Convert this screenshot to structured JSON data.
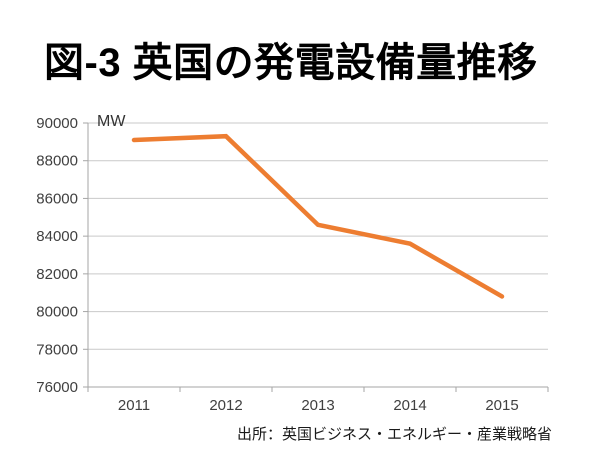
{
  "header": {
    "title": "図-3 英国の発電設備量推移"
  },
  "footer": {
    "source_label": "出所：英国ビジネス・エネルギー・産業戦略省"
  },
  "chart_data": {
    "type": "line",
    "title": "図-3 英国の発電設備量推移",
    "categories": [
      "2011",
      "2012",
      "2013",
      "2014",
      "2015"
    ],
    "values": [
      89100,
      89300,
      84600,
      83600,
      80800
    ],
    "xlabel": "",
    "ylabel": "MW",
    "ylim": [
      76000,
      90000
    ],
    "ytick_step": 2000,
    "yticks": [
      76000,
      78000,
      80000,
      82000,
      84000,
      86000,
      88000,
      90000
    ],
    "grid": true,
    "legend": "none",
    "line_color": "#ED7D31",
    "source": "出所：英国ビジネス・エネルギー・産業戦略省"
  },
  "colors": {
    "line": "#ED7D31",
    "gridline": "#C9C9C9",
    "axis": "#A6A6A6",
    "tick_label": "#404040",
    "unit_label": "#333333",
    "title": "#000000"
  }
}
